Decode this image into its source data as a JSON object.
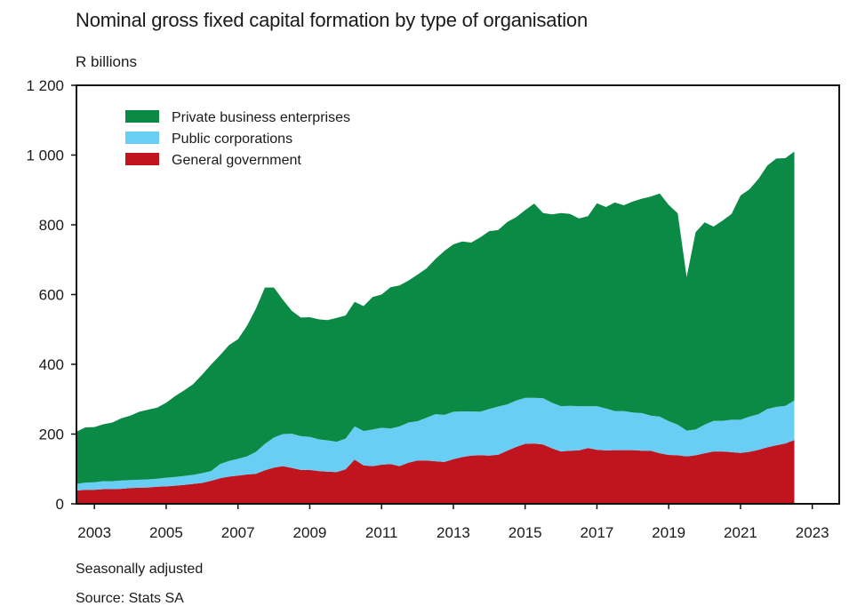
{
  "chart_data": {
    "type": "area",
    "stacked": true,
    "title": "Nominal gross fixed capital formation by type of organisation",
    "unit_label": "R billions",
    "note": "Seasonally adjusted",
    "source": "Source: Stats SA",
    "ylim": [
      0,
      1200
    ],
    "yticks": [
      0,
      200,
      400,
      600,
      800,
      1000,
      1200
    ],
    "ytick_labels": [
      "0",
      "200",
      "400",
      "600",
      "800",
      "1 000",
      "1 200"
    ],
    "xlim": [
      2002.5,
      2023.75
    ],
    "xticks": [
      2003,
      2005,
      2007,
      2009,
      2011,
      2013,
      2015,
      2017,
      2019,
      2021,
      2023
    ],
    "xtick_labels": [
      "2003",
      "2005",
      "2007",
      "2009",
      "2011",
      "2013",
      "2015",
      "2017",
      "2019",
      "2021",
      "2023"
    ],
    "x": [
      2002.5,
      2002.75,
      2003,
      2003.25,
      2003.5,
      2003.75,
      2004,
      2004.25,
      2004.5,
      2004.75,
      2005,
      2005.25,
      2005.5,
      2005.75,
      2006,
      2006.25,
      2006.5,
      2006.75,
      2007,
      2007.25,
      2007.5,
      2007.75,
      2008,
      2008.25,
      2008.5,
      2008.75,
      2009,
      2009.25,
      2009.5,
      2009.75,
      2010,
      2010.25,
      2010.5,
      2010.75,
      2011,
      2011.25,
      2011.5,
      2011.75,
      2012,
      2012.25,
      2012.5,
      2012.75,
      2013,
      2013.25,
      2013.5,
      2013.75,
      2014,
      2014.25,
      2014.5,
      2014.75,
      2015,
      2015.25,
      2015.5,
      2015.75,
      2016,
      2016.25,
      2016.5,
      2016.75,
      2017,
      2017.25,
      2017.5,
      2017.75,
      2018,
      2018.25,
      2018.5,
      2018.75,
      2019,
      2019.25,
      2019.5,
      2019.75,
      2020,
      2020.25,
      2020.5,
      2020.75,
      2021,
      2021.25,
      2021.5,
      2021.75,
      2022,
      2022.25,
      2022.5
    ],
    "series": [
      {
        "name": "General government",
        "color": "#c0151f",
        "values": [
          38,
          40,
          40,
          42,
          42,
          43,
          45,
          46,
          47,
          49,
          50,
          52,
          54,
          57,
          60,
          66,
          73,
          78,
          81,
          84,
          86,
          96,
          104,
          108,
          103,
          97,
          97,
          94,
          92,
          91,
          99,
          127,
          110,
          108,
          112,
          114,
          108,
          118,
          124,
          124,
          122,
          120,
          128,
          134,
          138,
          139,
          138,
          141,
          152,
          163,
          172,
          173,
          170,
          159,
          150,
          152,
          153,
          160,
          155,
          153,
          154,
          154,
          154,
          152,
          152,
          145,
          140,
          139,
          136,
          139,
          145,
          150,
          150,
          148,
          146,
          149,
          155,
          162,
          168,
          173,
          183
        ]
      },
      {
        "name": "Public corporations",
        "color": "#6acdf3",
        "values": [
          19,
          21,
          22,
          23,
          23,
          24,
          23,
          23,
          23,
          23,
          25,
          25,
          26,
          26,
          28,
          28,
          41,
          45,
          48,
          52,
          63,
          76,
          86,
          92,
          98,
          97,
          95,
          91,
          90,
          87,
          88,
          95,
          99,
          105,
          106,
          102,
          114,
          115,
          113,
          123,
          135,
          135,
          136,
          131,
          127,
          125,
          134,
          138,
          133,
          133,
          132,
          131,
          133,
          131,
          130,
          129,
          127,
          120,
          125,
          120,
          112,
          112,
          108,
          108,
          101,
          105,
          97,
          88,
          74,
          74,
          82,
          88,
          88,
          93,
          95,
          101,
          102,
          110,
          110,
          108,
          113
        ]
      },
      {
        "name": "Private business enterprises",
        "color": "#0a8a45",
        "values": [
          150,
          158,
          158,
          163,
          168,
          178,
          185,
          195,
          200,
          204,
          215,
          232,
          245,
          260,
          282,
          305,
          312,
          332,
          343,
          374,
          411,
          448,
          430,
          385,
          352,
          340,
          343,
          344,
          345,
          355,
          353,
          357,
          358,
          380,
          382,
          405,
          404,
          407,
          420,
          428,
          445,
          470,
          480,
          487,
          484,
          500,
          510,
          506,
          523,
          526,
          538,
          557,
          531,
          540,
          554,
          550,
          538,
          545,
          582,
          578,
          598,
          590,
          605,
          615,
          628,
          640,
          620,
          606,
          440,
          566,
          580,
          557,
          574,
          590,
          643,
          652,
          675,
          698,
          712,
          710,
          714
        ]
      }
    ]
  }
}
